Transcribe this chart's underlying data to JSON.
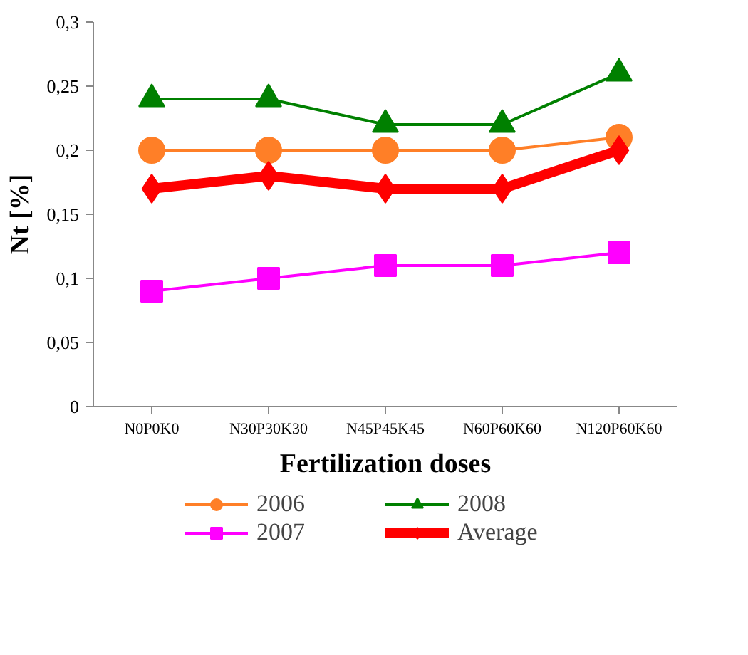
{
  "chart_data": {
    "type": "line",
    "xlabel": "Fertilization doses",
    "ylabel": "Nt [%]",
    "categories": [
      "N0P0K0",
      "N30P30K30",
      "N45P45K45",
      "N60P60K60",
      "N120P60K60"
    ],
    "series": [
      {
        "name": "2006",
        "color": "#ff7f27",
        "marker": "circle",
        "values": [
          0.2,
          0.2,
          0.2,
          0.2,
          0.21
        ]
      },
      {
        "name": "2007",
        "color": "#ff00ff",
        "marker": "square",
        "values": [
          0.09,
          0.1,
          0.11,
          0.11,
          0.12
        ]
      },
      {
        "name": "2008",
        "color": "#008000",
        "marker": "triangle",
        "values": [
          0.24,
          0.24,
          0.22,
          0.22,
          0.26
        ]
      },
      {
        "name": "Average",
        "color": "#ff0000",
        "marker": "diamond",
        "values": [
          0.17,
          0.18,
          0.17,
          0.17,
          0.2
        ]
      }
    ],
    "ylim": [
      0,
      0.3
    ],
    "yticks": [
      0,
      {
        "value": 0.05,
        "label": "0,05"
      },
      {
        "value": 0.1,
        "label": "0,1"
      },
      {
        "value": 0.15,
        "label": "0,15"
      },
      {
        "value": 0.2,
        "label": "0,2"
      },
      {
        "value": 0.25,
        "label": "0,25"
      },
      {
        "value": 0.3,
        "label": "0,3"
      }
    ],
    "grid": false,
    "legend": "bottom",
    "line_style": "solid"
  }
}
